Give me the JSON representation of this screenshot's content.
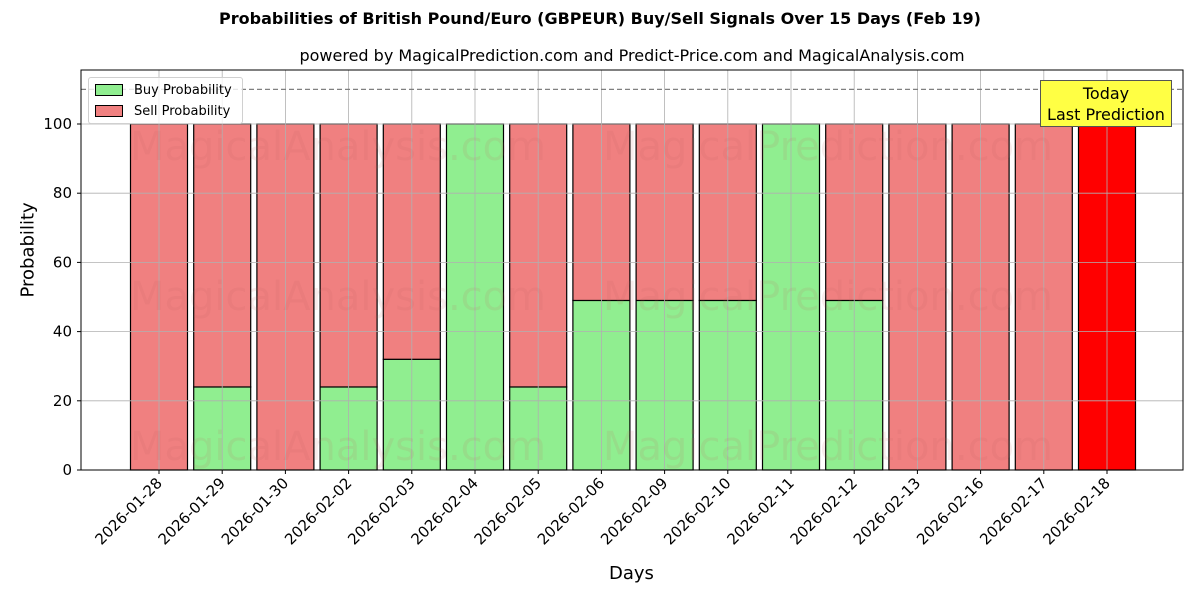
{
  "chart_data": {
    "type": "bar",
    "stacked": true,
    "title": "Probabilities of British Pound/Euro (GBPEUR) Buy/Sell Signals Over 15 Days (Feb 19)",
    "subtitle": "powered by MagicalPrediction.com and Predict-Price.com and MagicalAnalysis.com",
    "xlabel": "Days",
    "ylabel": "Probability",
    "ylim": [
      0,
      115
    ],
    "yticks": [
      0,
      20,
      40,
      60,
      80,
      100
    ],
    "grid": true,
    "legend_position": "upper left",
    "reference_line": {
      "y": 110,
      "style": "dashed",
      "color": "#808080"
    },
    "annotation": {
      "text": "Today\nLast Prediction",
      "line1": "Today",
      "line2": "Last Prediction",
      "target": "2026-02-18"
    },
    "categories": [
      "2026-01-28",
      "2026-01-29",
      "2026-01-30",
      "2026-02-02",
      "2026-02-03",
      "2026-02-04",
      "2026-02-05",
      "2026-02-06",
      "2026-02-09",
      "2026-02-10",
      "2026-02-11",
      "2026-02-12",
      "2026-02-13",
      "2026-02-16",
      "2026-02-17",
      "2026-02-18"
    ],
    "series": [
      {
        "name": "Buy Probability",
        "color": "#90ee90",
        "values": [
          0,
          24,
          0,
          24,
          32,
          100,
          24,
          49,
          49,
          49,
          100,
          49,
          0,
          0,
          0,
          0
        ]
      },
      {
        "name": "Sell Probability",
        "color": "#f08080",
        "values": [
          100,
          76,
          100,
          76,
          68,
          0,
          76,
          51,
          51,
          51,
          0,
          51,
          100,
          100,
          100,
          100
        ]
      }
    ],
    "highlight_color": "#ff0000",
    "watermarks": [
      "MagicalAnalysis.com",
      "MagicalPrediction.com"
    ]
  },
  "legend": {
    "buy_label": "Buy Probability",
    "sell_label": "Sell Probability"
  }
}
